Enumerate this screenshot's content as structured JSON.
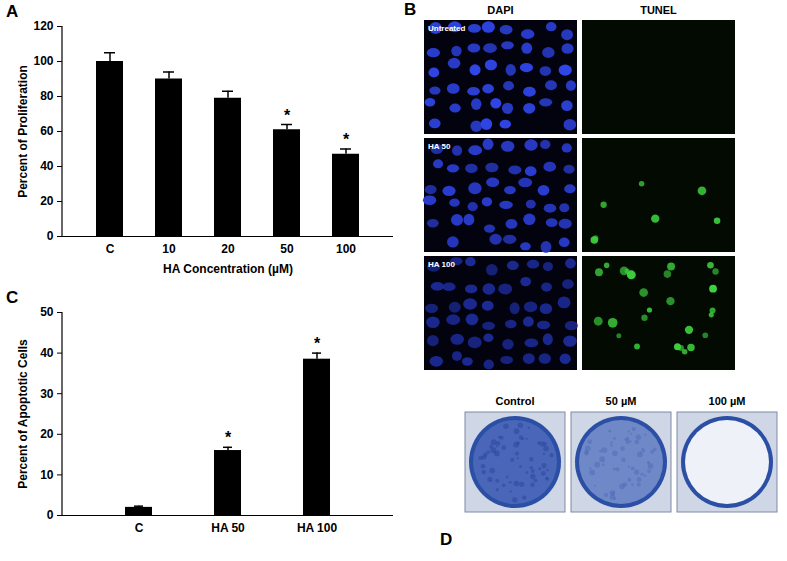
{
  "chart_data": [
    {
      "type": "bar",
      "title": "A",
      "categories": [
        "C",
        "10",
        "20",
        "50",
        "100"
      ],
      "values": [
        100,
        90,
        79,
        61,
        47
      ],
      "errors": [
        5,
        4,
        4,
        3,
        3
      ],
      "color": "#000000",
      "x_label": "HA Concentration (µM)",
      "y_label": "Percent of Proliferation",
      "ylim": [
        0,
        120
      ],
      "yticks": [
        0,
        20,
        40,
        60,
        80,
        100,
        120
      ],
      "annotations": [
        {
          "category": "50",
          "text": "*"
        },
        {
          "category": "100",
          "text": "*"
        }
      ]
    },
    {
      "type": "bar",
      "title": "C",
      "categories": [
        "C",
        "HA 50",
        "HA 100"
      ],
      "values": [
        2,
        16,
        38.5
      ],
      "errors": [
        0.3,
        0.8,
        1.5
      ],
      "color": "#000000",
      "y_label": "Percent of Apoptotic Cells",
      "ylim": [
        0,
        50
      ],
      "yticks": [
        0,
        10,
        20,
        30,
        40,
        50
      ],
      "annotations": [
        {
          "category": "HA 50",
          "text": "*"
        },
        {
          "category": "HA 100",
          "text": "*"
        }
      ]
    }
  ],
  "panels": [
    {
      "title": "B",
      "columns": [
        "DAPI",
        "TUNEL"
      ],
      "rows": [
        "Untreated",
        "HA 50",
        "HA 100"
      ]
    },
    {
      "title": "D",
      "labels": [
        "Control",
        "50 µM",
        "100 µM"
      ]
    }
  ]
}
